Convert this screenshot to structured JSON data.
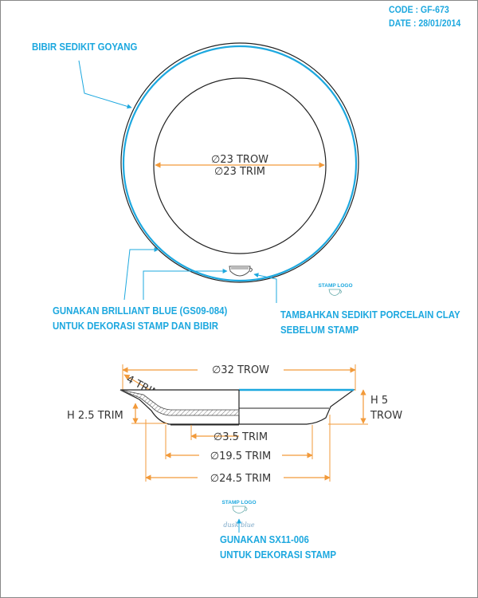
{
  "header": {
    "code": "CODE : GF-673",
    "date": "DATE : 28/01/2014"
  },
  "notes": {
    "rim": "BIBIR SEDIKIT GOYANG",
    "glaze_line1": "GUNAKAN BRILLIANT BLUE (GS09-084)",
    "glaze_line2": "UNTUK DEKORASI STAMP DAN BIBIR",
    "clay_line1": "TAMBAHKAN SEDIKIT PORCELAIN CLAY",
    "clay_line2": "SEBELUM STAMP",
    "stamp_line1": "GUNAKAN SX11-006",
    "stamp_line2": "UNTUK DEKORASI STAMP"
  },
  "top_view": {
    "inner_diameter_trow": "∅23 TROW",
    "inner_diameter_trim": "∅23 TRIM",
    "stamp_logo_label": "STAMP LOGO"
  },
  "side_view": {
    "outer_diameter": "∅32 TROW",
    "rim_width": "4 TRIM",
    "height_trow_value": "H 5",
    "height_trow_unit": "TROW",
    "foot_height": "H 2.5 TRIM",
    "foot_diameter": "∅3.5 TRIM",
    "base_diameter": "∅19.5 TRIM",
    "bottom_diameter": "∅24.5 TRIM",
    "stamp_logo_label": "STAMP LOGO",
    "stamp_script": "dusk blue"
  },
  "colors": {
    "accent": "#1da8df",
    "dimension": "#f29a3a",
    "outline": "#222222"
  }
}
